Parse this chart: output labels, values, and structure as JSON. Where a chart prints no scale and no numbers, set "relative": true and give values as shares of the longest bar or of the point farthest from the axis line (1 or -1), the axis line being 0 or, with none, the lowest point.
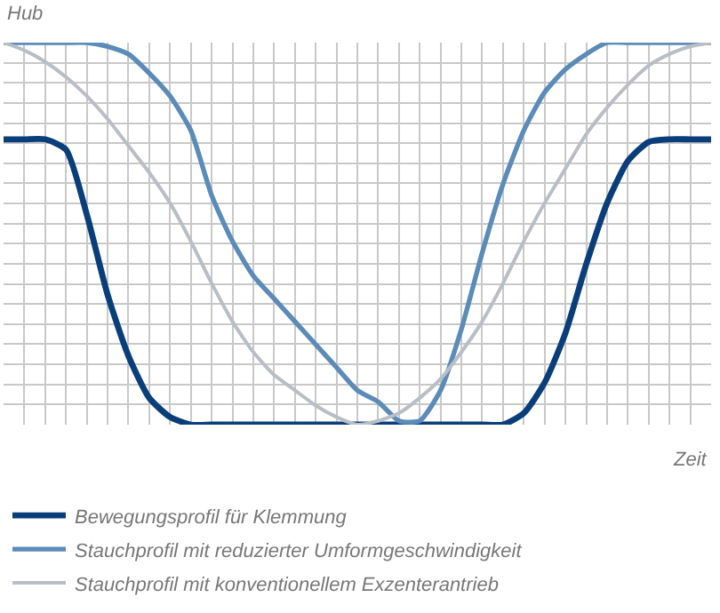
{
  "chart_data": {
    "type": "line",
    "relative": true,
    "xlabel": "Zeit",
    "ylabel": "Hub",
    "grid": true,
    "legend": "bottom",
    "marker": "none",
    "line_style": "solid",
    "categories": [
      null,
      null,
      null,
      null,
      null,
      null,
      null,
      null,
      null,
      null,
      null,
      null,
      null,
      null,
      null,
      null,
      null,
      null,
      null,
      null,
      null,
      null,
      null,
      null,
      null,
      null,
      null,
      null,
      null,
      null,
      null,
      null,
      null,
      null,
      null
    ],
    "series": [
      {
        "name": "Bewegungsprofil für Klemmung",
        "color": "#0a3e7a",
        "values": [
          0.747,
          0.747,
          0.747,
          0.72,
          0.55,
          0.34,
          0.18,
          0.07,
          0.02,
          0,
          0,
          0,
          0,
          0,
          0,
          0,
          0,
          0,
          0,
          0,
          0,
          0,
          0,
          0,
          0,
          0.03,
          0.11,
          0.24,
          0.42,
          0.58,
          0.69,
          0.74,
          0.747,
          0.747,
          0.747
        ]
      },
      {
        "name": "Stauchprofil mit reduzierter Umformgeschwindigkeit",
        "color": "#5b8bb8",
        "values": [
          1,
          1,
          1,
          1,
          1,
          0.99,
          0.97,
          0.92,
          0.86,
          0.77,
          0.6,
          0.48,
          0.39,
          0.33,
          0.27,
          0.21,
          0.15,
          0.09,
          0.06,
          0.01,
          0.01,
          0.09,
          0.25,
          0.45,
          0.63,
          0.77,
          0.87,
          0.93,
          0.97,
          1,
          1,
          1,
          1,
          1,
          1
        ]
      },
      {
        "name": "Stauchprofil mit konventionellem Exzenterantrieb",
        "color": "#b8bec6",
        "values": [
          1,
          0.98,
          0.95,
          0.91,
          0.86,
          0.8,
          0.73,
          0.66,
          0.58,
          0.48,
          0.37,
          0.27,
          0.19,
          0.13,
          0.09,
          0.05,
          0.02,
          0,
          0.01,
          0.03,
          0.07,
          0.12,
          0.19,
          0.27,
          0.37,
          0.48,
          0.58,
          0.67,
          0.76,
          0.83,
          0.89,
          0.94,
          0.97,
          0.99,
          1
        ]
      }
    ]
  }
}
